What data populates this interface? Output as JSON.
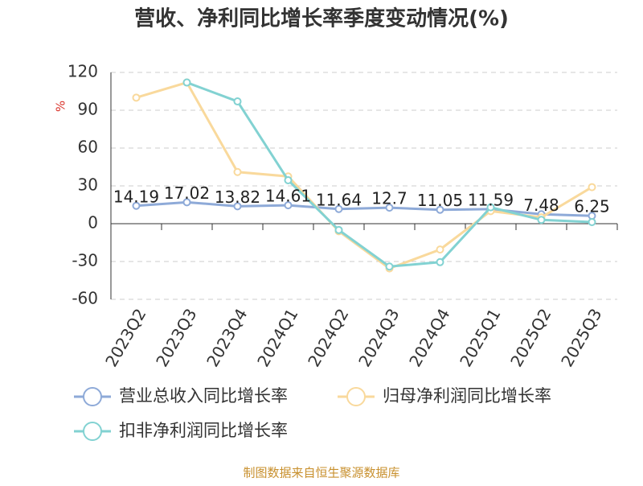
{
  "chart_data": {
    "type": "line",
    "title": "营收、净利同比增长率季度变动情况(%)",
    "y_label": "%",
    "categories": [
      "2023Q2",
      "2023Q3",
      "2023Q4",
      "2024Q1",
      "2024Q2",
      "2024Q3",
      "2024Q4",
      "2025Q1",
      "2025Q2",
      "2025Q3"
    ],
    "series": [
      {
        "name": "营业总收入同比增长率",
        "color": "#8eaad8",
        "values": [
          14.19,
          17.02,
          13.82,
          14.61,
          11.64,
          12.7,
          11.05,
          11.59,
          7.48,
          6.25
        ],
        "show_labels": true
      },
      {
        "name": "归母净利润同比增长率",
        "color": "#f9d99c",
        "values": [
          100,
          112,
          41,
          37.5,
          -6,
          -35.5,
          -20.5,
          10,
          5,
          29
        ],
        "show_labels": false
      },
      {
        "name": "扣非净利润同比增长率",
        "color": "#82d2d2",
        "values": [
          null,
          112,
          97,
          34.5,
          -5,
          -34,
          -30.5,
          13,
          3,
          1.3
        ],
        "show_labels": false
      }
    ],
    "ylim": [
      -60,
      120
    ],
    "yticks": [
      -60,
      -30,
      0,
      30,
      60,
      90,
      120
    ],
    "grid": true,
    "source": "制图数据来自恒生聚源数据库"
  }
}
